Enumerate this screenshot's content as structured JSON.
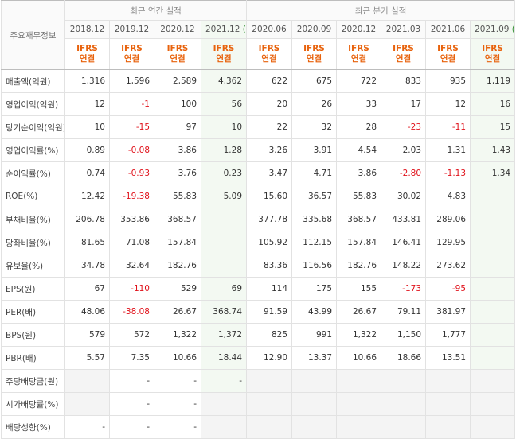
{
  "corner_label": "주요재무정보",
  "group_annual": "최근 연간 실적",
  "group_quarter": "최근 분기 실적",
  "annual_periods": [
    {
      "label": "2018.12",
      "est": ""
    },
    {
      "label": "2019.12",
      "est": ""
    },
    {
      "label": "2020.12",
      "est": ""
    },
    {
      "label": "2021.12",
      "est": "(E)"
    }
  ],
  "quarter_periods": [
    {
      "label": "2020.06",
      "est": ""
    },
    {
      "label": "2020.09",
      "est": ""
    },
    {
      "label": "2020.12",
      "est": ""
    },
    {
      "label": "2021.03",
      "est": ""
    },
    {
      "label": "2021.06",
      "est": ""
    },
    {
      "label": "2021.09",
      "est": "(E)"
    }
  ],
  "ifrs_top": "IFRS",
  "ifrs_bottom": "연결",
  "rows": [
    {
      "label": "매출액(억원)",
      "values": [
        "1,316",
        "1,596",
        "2,589",
        "4,362",
        "622",
        "675",
        "722",
        "833",
        "935",
        "1,119"
      ]
    },
    {
      "label": "영업이익(억원)",
      "values": [
        "12",
        "-1",
        "100",
        "56",
        "20",
        "26",
        "33",
        "17",
        "12",
        "16"
      ]
    },
    {
      "label": "당기순이익(억원)",
      "values": [
        "10",
        "-15",
        "97",
        "10",
        "22",
        "32",
        "28",
        "-23",
        "-11",
        "15"
      ]
    },
    {
      "label": "영업이익률(%)",
      "values": [
        "0.89",
        "-0.08",
        "3.86",
        "1.28",
        "3.26",
        "3.91",
        "4.54",
        "2.03",
        "1.31",
        "1.43"
      ],
      "sep": true
    },
    {
      "label": "순이익률(%)",
      "values": [
        "0.74",
        "-0.93",
        "3.76",
        "0.23",
        "3.47",
        "4.71",
        "3.86",
        "-2.80",
        "-1.13",
        "1.34"
      ]
    },
    {
      "label": "ROE(%)",
      "values": [
        "12.42",
        "-19.38",
        "55.83",
        "5.09",
        "15.60",
        "36.57",
        "55.83",
        "30.02",
        "4.83",
        ""
      ]
    },
    {
      "label": "부채비율(%)",
      "values": [
        "206.78",
        "353.86",
        "368.57",
        "",
        "377.78",
        "335.68",
        "368.57",
        "433.81",
        "289.06",
        ""
      ],
      "sep": true
    },
    {
      "label": "당좌비율(%)",
      "values": [
        "81.65",
        "71.08",
        "157.84",
        "",
        "105.92",
        "112.15",
        "157.84",
        "146.41",
        "129.95",
        ""
      ]
    },
    {
      "label": "유보율(%)",
      "values": [
        "34.78",
        "32.64",
        "182.76",
        "",
        "83.36",
        "116.56",
        "182.76",
        "148.22",
        "273.62",
        ""
      ]
    },
    {
      "label": "EPS(원)",
      "values": [
        "67",
        "-110",
        "529",
        "69",
        "114",
        "175",
        "155",
        "-173",
        "-95",
        ""
      ],
      "sep": true
    },
    {
      "label": "PER(배)",
      "values": [
        "48.06",
        "-38.08",
        "26.67",
        "368.74",
        "91.59",
        "43.99",
        "26.67",
        "79.11",
        "381.97",
        ""
      ]
    },
    {
      "label": "BPS(원)",
      "values": [
        "579",
        "572",
        "1,322",
        "1,372",
        "825",
        "991",
        "1,322",
        "1,150",
        "1,777",
        ""
      ]
    },
    {
      "label": "PBR(배)",
      "values": [
        "5.57",
        "7.35",
        "10.66",
        "18.44",
        "12.90",
        "13.37",
        "10.66",
        "18.66",
        "13.51",
        ""
      ]
    },
    {
      "label": "주당배당금(원)",
      "values": [
        "",
        "-",
        "-",
        "-",
        "",
        "",
        "",
        "",
        "",
        ""
      ],
      "sep": true,
      "blank": [
        0,
        4,
        5,
        6,
        7,
        8,
        9
      ]
    },
    {
      "label": "시가배당률(%)",
      "values": [
        "",
        "-",
        "-",
        "",
        "",
        "",
        "",
        "",
        "",
        ""
      ],
      "blank": [
        0,
        3,
        4,
        5,
        6,
        7,
        8,
        9
      ]
    },
    {
      "label": "배당성향(%)",
      "values": [
        "-",
        "-",
        "-",
        "",
        "",
        "",
        "",
        "",
        "",
        ""
      ],
      "blank": [
        3,
        4,
        5,
        6,
        7,
        8,
        9
      ]
    }
  ]
}
